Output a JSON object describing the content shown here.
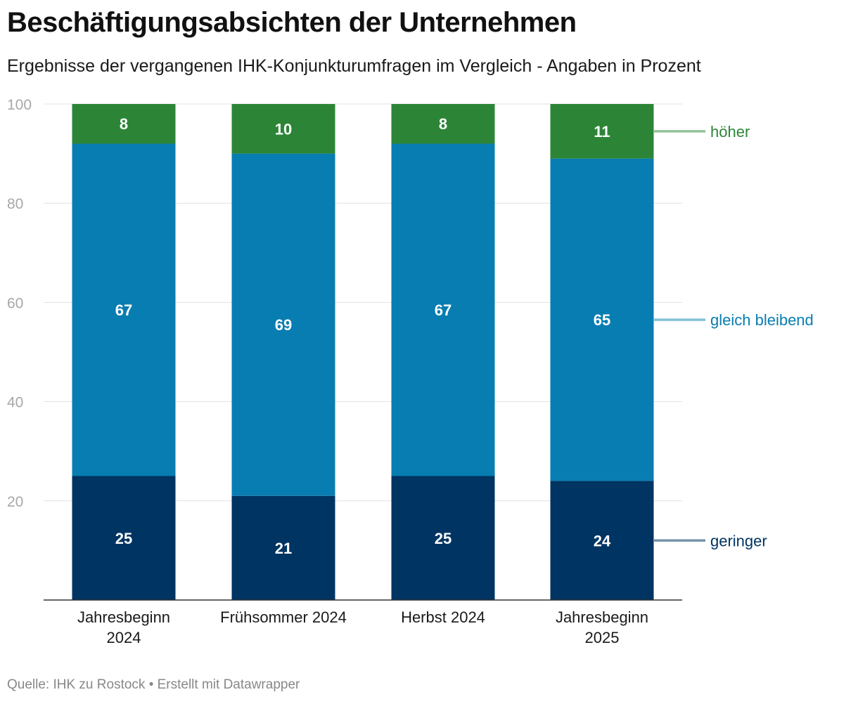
{
  "title": "Beschäftigungsabsichten der Unternehmen",
  "subtitle": "Ergebnisse der vergangenen IHK-Konjunkturumfragen im Vergleich - Angaben in Prozent",
  "footer": "Quelle: IHK zu Rostock • Erstellt mit Datawrapper",
  "chart_data": {
    "type": "bar",
    "stacked": true,
    "categories": [
      [
        "Jahresbeginn",
        "2024"
      ],
      [
        "Frühsommer 2024"
      ],
      [
        "Herbst 2024"
      ],
      [
        "Jahresbeginn",
        "2025"
      ]
    ],
    "series": [
      {
        "name": "geringer",
        "values": [
          25,
          21,
          25,
          24
        ],
        "color": "#003462"
      },
      {
        "name": "gleich bleibend",
        "values": [
          67,
          69,
          67,
          65
        ],
        "color": "#087db1"
      },
      {
        "name": "höher",
        "values": [
          8,
          10,
          8,
          11
        ],
        "color": "#2c8537"
      }
    ],
    "legend_line_colors": [
      "#7a92aa",
      "#85c0d5",
      "#93c396"
    ],
    "ylim": [
      0,
      100
    ],
    "yticks": [
      20,
      40,
      60,
      80,
      100
    ],
    "grid": true,
    "legend_placement": "right, inline at last bar"
  }
}
